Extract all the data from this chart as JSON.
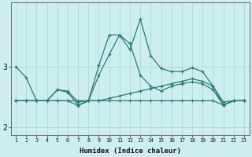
{
  "xlabel": "Humidex (Indice chaleur)",
  "bg_color": "#ceeeed",
  "line_color": "#2a7a72",
  "grid_color": "#aad8d5",
  "x": [
    1,
    2,
    3,
    4,
    5,
    6,
    7,
    8,
    9,
    10,
    11,
    12,
    13,
    14,
    15,
    16,
    17,
    18,
    19,
    20,
    21,
    22,
    23
  ],
  "lines": [
    [
      3.0,
      2.82,
      2.44,
      2.44,
      2.62,
      2.6,
      2.42,
      2.44,
      3.02,
      3.52,
      3.52,
      3.28,
      3.78,
      3.18,
      2.97,
      2.92,
      2.92,
      2.98,
      2.92,
      2.68,
      2.42,
      2.44,
      2.44
    ],
    [
      2.44,
      2.44,
      2.44,
      2.44,
      2.62,
      2.58,
      2.37,
      2.44,
      2.86,
      3.2,
      3.52,
      3.38,
      2.86,
      2.68,
      2.6,
      2.68,
      2.72,
      2.75,
      2.72,
      2.62,
      2.37,
      2.44,
      2.44
    ],
    [
      2.44,
      2.44,
      2.44,
      2.44,
      2.44,
      2.44,
      2.36,
      2.44,
      2.44,
      2.48,
      2.52,
      2.56,
      2.6,
      2.64,
      2.68,
      2.72,
      2.76,
      2.8,
      2.76,
      2.68,
      2.37,
      2.44,
      2.44
    ],
    [
      2.44,
      2.44,
      2.44,
      2.44,
      2.44,
      2.44,
      2.44,
      2.44,
      2.44,
      2.44,
      2.44,
      2.44,
      2.44,
      2.44,
      2.44,
      2.44,
      2.44,
      2.44,
      2.44,
      2.44,
      2.37,
      2.44,
      2.44
    ]
  ],
  "xlim": [
    0.5,
    23.5
  ],
  "ylim": [
    1.88,
    4.05
  ],
  "yticks": [
    2,
    3
  ],
  "xticks": [
    1,
    2,
    3,
    4,
    5,
    6,
    7,
    8,
    9,
    10,
    11,
    12,
    13,
    14,
    15,
    16,
    17,
    18,
    19,
    20,
    21,
    22,
    23
  ]
}
